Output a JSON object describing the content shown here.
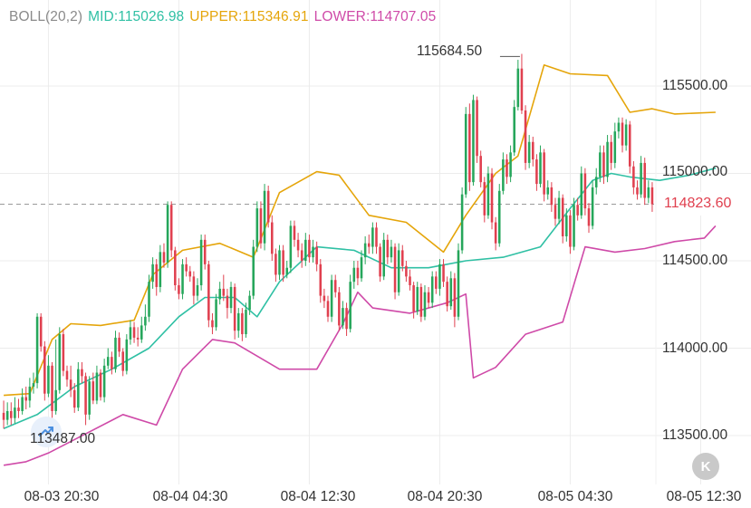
{
  "legend": {
    "boll": "BOLL(20,2)",
    "mid": "MID:115026.98",
    "upper": "UPPER:115346.91",
    "lower": "LOWER:114707.05"
  },
  "y_ticks": [
    "115500.00",
    "115000.00",
    "114500.00",
    "114000.00",
    "113500.00"
  ],
  "x_ticks": [
    "08-03 20:30",
    "08-04 04:30",
    "08-04 12:30",
    "08-04 20:30",
    "08-05 04:30",
    "08-05 12:30"
  ],
  "current_price": "114823.60",
  "high_label": "115684.50",
  "low_label": "113487.00",
  "k_button_label": "K",
  "colors": {
    "up": "#26a65b",
    "down": "#e0404f",
    "mid": "#2fc0a4",
    "upper": "#e5a50a",
    "lower": "#cf4aa8",
    "grid": "#ececec",
    "price_line": "#9a9a9a"
  },
  "chart_data": {
    "type": "candlestick",
    "indicator": "BOLL(20,2)",
    "ylim": [
      113300,
      115770
    ],
    "y_ticks": [
      115500,
      115000,
      114500,
      114000,
      113500
    ],
    "x_ticks": [
      "08-03 20:30",
      "08-04 04:30",
      "08-04 12:30",
      "08-04 20:30",
      "08-05 04:30",
      "08-05 12:30"
    ],
    "x_tick_index": [
      12,
      47,
      82,
      117,
      152,
      187
    ],
    "current_price": 114823.6,
    "high": 115684.5,
    "low": 113487.0,
    "candles": [
      [
        113630,
        113590,
        113700,
        113540
      ],
      [
        113590,
        113640,
        113690,
        113560
      ],
      [
        113640,
        113600,
        113690,
        113560
      ],
      [
        113600,
        113660,
        113720,
        113570
      ],
      [
        113660,
        113640,
        113710,
        113600
      ],
      [
        113640,
        113720,
        113770,
        113620
      ],
      [
        113720,
        113700,
        113780,
        113650
      ],
      [
        113700,
        113780,
        113830,
        113660
      ],
      [
        113780,
        113800,
        113860,
        113740
      ],
      [
        113800,
        114180,
        114200,
        113770
      ],
      [
        114180,
        114010,
        114200,
        113980
      ],
      [
        114010,
        113740,
        114040,
        113700
      ],
      [
        113740,
        113900,
        113960,
        113720
      ],
      [
        113900,
        113640,
        113920,
        113600
      ],
      [
        113640,
        113760,
        114050,
        113620
      ],
      [
        113760,
        114080,
        114120,
        113740
      ],
      [
        114080,
        113870,
        114110,
        113840
      ],
      [
        113870,
        113820,
        113900,
        113780
      ],
      [
        113820,
        113760,
        113900,
        113720
      ],
      [
        113760,
        113660,
        113800,
        113630
      ],
      [
        113660,
        113880,
        113920,
        113640
      ],
      [
        113880,
        113840,
        113920,
        113800
      ],
      [
        113840,
        113620,
        113860,
        113560
      ],
      [
        113620,
        113810,
        113840,
        113590
      ],
      [
        113810,
        113700,
        113860,
        113680
      ],
      [
        113700,
        113860,
        113900,
        113680
      ],
      [
        113860,
        113720,
        113880,
        113700
      ],
      [
        113720,
        113900,
        113940,
        113690
      ],
      [
        113900,
        113950,
        114000,
        113880
      ],
      [
        113950,
        113880,
        113980,
        113850
      ],
      [
        113880,
        114060,
        114100,
        113860
      ],
      [
        114060,
        113980,
        114090,
        113950
      ],
      [
        113980,
        113870,
        114000,
        113840
      ],
      [
        113870,
        114050,
        114080,
        113850
      ],
      [
        114050,
        114120,
        114160,
        114020
      ],
      [
        114120,
        114060,
        114150,
        114030
      ],
      [
        114060,
        114050,
        114120,
        114010
      ],
      [
        114050,
        114130,
        114180,
        114030
      ],
      [
        114130,
        114180,
        114250,
        114100
      ],
      [
        114180,
        114380,
        114420,
        114150
      ],
      [
        114380,
        114480,
        114520,
        114340
      ],
      [
        114480,
        114350,
        114510,
        114300
      ],
      [
        114350,
        114550,
        114590,
        114320
      ],
      [
        114550,
        114490,
        114600,
        114460
      ],
      [
        114490,
        114820,
        114840,
        114460
      ],
      [
        114820,
        114560,
        114840,
        114520
      ],
      [
        114560,
        114360,
        114580,
        114330
      ],
      [
        114360,
        114310,
        114400,
        114280
      ],
      [
        114310,
        114480,
        114510,
        114280
      ],
      [
        114480,
        114440,
        114520,
        114410
      ],
      [
        114440,
        114410,
        114470,
        114380
      ],
      [
        114410,
        114300,
        114440,
        114250
      ],
      [
        114300,
        114360,
        114400,
        114270
      ],
      [
        114360,
        114620,
        114650,
        114330
      ],
      [
        114620,
        114480,
        114650,
        114450
      ],
      [
        114480,
        114160,
        114500,
        114120
      ],
      [
        114160,
        114120,
        114200,
        114080
      ],
      [
        114120,
        114280,
        114310,
        114100
      ],
      [
        114280,
        114340,
        114380,
        114250
      ],
      [
        114340,
        114300,
        114420,
        114270
      ],
      [
        114300,
        114230,
        114340,
        114170
      ],
      [
        114230,
        114350,
        114380,
        114200
      ],
      [
        114350,
        114100,
        114370,
        114050
      ],
      [
        114100,
        114200,
        114230,
        114060
      ],
      [
        114200,
        114080,
        114230,
        114040
      ],
      [
        114080,
        114220,
        114260,
        114060
      ],
      [
        114220,
        114300,
        114330,
        114190
      ],
      [
        114300,
        114580,
        114620,
        114280
      ],
      [
        114580,
        114800,
        114840,
        114550
      ],
      [
        114800,
        114600,
        114840,
        114570
      ],
      [
        114600,
        114900,
        114940,
        114560
      ],
      [
        114900,
        114720,
        114930,
        114690
      ],
      [
        114720,
        114540,
        114760,
        114500
      ],
      [
        114540,
        114420,
        114570,
        114380
      ],
      [
        114420,
        114560,
        114590,
        114390
      ],
      [
        114560,
        114420,
        114590,
        114380
      ],
      [
        114420,
        114460,
        114500,
        114400
      ],
      [
        114460,
        114700,
        114730,
        114430
      ],
      [
        114700,
        114620,
        114730,
        114580
      ],
      [
        114620,
        114560,
        114660,
        114520
      ],
      [
        114560,
        114500,
        114600,
        114460
      ],
      [
        114500,
        114620,
        114660,
        114470
      ],
      [
        114620,
        114520,
        114650,
        114490
      ],
      [
        114520,
        114580,
        114620,
        114490
      ],
      [
        114580,
        114480,
        114610,
        114440
      ],
      [
        114480,
        114300,
        114510,
        114260
      ],
      [
        114300,
        114270,
        114340,
        114230
      ],
      [
        114270,
        114180,
        114300,
        114150
      ],
      [
        114180,
        114390,
        114420,
        114150
      ],
      [
        114390,
        114320,
        114420,
        114290
      ],
      [
        114320,
        114130,
        114350,
        114100
      ],
      [
        114130,
        114230,
        114270,
        114110
      ],
      [
        114230,
        114110,
        114260,
        114070
      ],
      [
        114110,
        114380,
        114420,
        114090
      ],
      [
        114380,
        114460,
        114500,
        114340
      ],
      [
        114460,
        114400,
        114500,
        114360
      ],
      [
        114400,
        114520,
        114560,
        114380
      ],
      [
        114520,
        114600,
        114640,
        114480
      ],
      [
        114600,
        114580,
        114650,
        114540
      ],
      [
        114580,
        114690,
        114720,
        114540
      ],
      [
        114690,
        114580,
        114720,
        114540
      ],
      [
        114580,
        114410,
        114600,
        114380
      ],
      [
        114410,
        114620,
        114660,
        114390
      ],
      [
        114620,
        114520,
        114650,
        114480
      ],
      [
        114520,
        114580,
        114620,
        114490
      ],
      [
        114580,
        114320,
        114600,
        114280
      ],
      [
        114320,
        114560,
        114600,
        114300
      ],
      [
        114560,
        114470,
        114590,
        114440
      ],
      [
        114470,
        114410,
        114500,
        114380
      ],
      [
        114410,
        114360,
        114450,
        114330
      ],
      [
        114360,
        114210,
        114380,
        114170
      ],
      [
        114210,
        114350,
        114380,
        114190
      ],
      [
        114350,
        114180,
        114370,
        114150
      ],
      [
        114180,
        114320,
        114360,
        114160
      ],
      [
        114320,
        114260,
        114350,
        114230
      ],
      [
        114260,
        114410,
        114440,
        114230
      ],
      [
        114410,
        114340,
        114440,
        114310
      ],
      [
        114340,
        114480,
        114510,
        114300
      ],
      [
        114480,
        114380,
        114510,
        114350
      ],
      [
        114380,
        114240,
        114410,
        114210
      ],
      [
        114240,
        114400,
        114440,
        114220
      ],
      [
        114400,
        114180,
        114430,
        114120
      ],
      [
        114180,
        114560,
        114600,
        114160
      ],
      [
        114560,
        114880,
        114920,
        114540
      ],
      [
        114880,
        115340,
        115380,
        114860
      ],
      [
        115340,
        114950,
        115400,
        114900
      ],
      [
        114950,
        115420,
        115450,
        114930
      ],
      [
        115420,
        115100,
        115440,
        115060
      ],
      [
        115100,
        114950,
        115130,
        114920
      ],
      [
        114950,
        114760,
        114980,
        114720
      ],
      [
        114760,
        115000,
        115040,
        114740
      ],
      [
        115000,
        114720,
        115030,
        114680
      ],
      [
        114720,
        114600,
        114750,
        114560
      ],
      [
        114600,
        114900,
        114940,
        114580
      ],
      [
        114900,
        115080,
        115120,
        114880
      ],
      [
        115080,
        114980,
        115110,
        114940
      ],
      [
        114980,
        115120,
        115160,
        114950
      ],
      [
        115120,
        115380,
        115420,
        115100
      ],
      [
        115380,
        115600,
        115650,
        115360
      ],
      [
        115600,
        115360,
        115684,
        115340
      ],
      [
        115360,
        115060,
        115390,
        115020
      ],
      [
        115060,
        115180,
        115220,
        115030
      ],
      [
        115180,
        115080,
        115210,
        115040
      ],
      [
        115080,
        114940,
        115110,
        114900
      ],
      [
        114940,
        115120,
        115160,
        114920
      ],
      [
        115120,
        114880,
        115140,
        114840
      ],
      [
        114880,
        114920,
        114960,
        114850
      ],
      [
        114920,
        114820,
        114950,
        114780
      ],
      [
        114820,
        114740,
        114860,
        114700
      ],
      [
        114740,
        114860,
        114900,
        114710
      ],
      [
        114860,
        114640,
        114880,
        114600
      ],
      [
        114640,
        114760,
        114800,
        114610
      ],
      [
        114760,
        114580,
        114790,
        114540
      ],
      [
        114580,
        114820,
        114860,
        114560
      ],
      [
        114820,
        114760,
        114860,
        114730
      ],
      [
        114760,
        115000,
        115040,
        114740
      ],
      [
        115000,
        114800,
        115030,
        114760
      ],
      [
        114800,
        114700,
        114830,
        114660
      ],
      [
        114700,
        114920,
        114960,
        114680
      ],
      [
        114920,
        114980,
        115030,
        114880
      ],
      [
        114980,
        115120,
        115160,
        114950
      ],
      [
        115120,
        114980,
        115160,
        114940
      ],
      [
        114980,
        115180,
        115220,
        114950
      ],
      [
        115180,
        115060,
        115220,
        115020
      ],
      [
        115060,
        115240,
        115290,
        115030
      ],
      [
        115240,
        115290,
        115320,
        115200
      ],
      [
        115290,
        115160,
        115320,
        115120
      ],
      [
        115160,
        115280,
        115310,
        115130
      ],
      [
        115280,
        115040,
        115300,
        115000
      ],
      [
        115040,
        114920,
        115070,
        114880
      ],
      [
        114920,
        114880,
        114960,
        114850
      ],
      [
        114880,
        115060,
        115100,
        114860
      ],
      [
        115060,
        114860,
        115090,
        114820
      ],
      [
        114860,
        114920,
        114960,
        114830
      ],
      [
        114920,
        114823.6,
        114950,
        114780
      ]
    ],
    "mid_path": [
      [
        0,
        113540
      ],
      [
        9,
        113620
      ],
      [
        19,
        113780
      ],
      [
        29,
        113880
      ],
      [
        39,
        114000
      ],
      [
        47,
        114180
      ],
      [
        54,
        114290
      ],
      [
        62,
        114290
      ],
      [
        68,
        114180
      ],
      [
        74,
        114380
      ],
      [
        84,
        114580
      ],
      [
        94,
        114560
      ],
      [
        104,
        114460
      ],
      [
        114,
        114460
      ],
      [
        124,
        114500
      ],
      [
        134,
        114520
      ],
      [
        144,
        114580
      ],
      [
        152,
        114800
      ],
      [
        158,
        114960
      ],
      [
        163,
        115000
      ],
      [
        168,
        114980
      ],
      [
        176,
        114960
      ],
      [
        184,
        114990
      ],
      [
        191,
        115030
      ]
    ],
    "upper_path": [
      [
        0,
        113730
      ],
      [
        7,
        113740
      ],
      [
        13,
        114050
      ],
      [
        18,
        114140
      ],
      [
        26,
        114130
      ],
      [
        35,
        114160
      ],
      [
        40,
        114420
      ],
      [
        48,
        114560
      ],
      [
        58,
        114600
      ],
      [
        67,
        114520
      ],
      [
        74,
        114890
      ],
      [
        84,
        115010
      ],
      [
        90,
        114990
      ],
      [
        98,
        114760
      ],
      [
        108,
        114720
      ],
      [
        118,
        114550
      ],
      [
        124,
        114760
      ],
      [
        132,
        115000
      ],
      [
        138,
        115100
      ],
      [
        145,
        115620
      ],
      [
        152,
        115570
      ],
      [
        162,
        115560
      ],
      [
        168,
        115350
      ],
      [
        174,
        115370
      ],
      [
        180,
        115340
      ],
      [
        191,
        115350
      ]
    ],
    "lower_path": [
      [
        0,
        113330
      ],
      [
        6,
        113350
      ],
      [
        12,
        113400
      ],
      [
        22,
        113510
      ],
      [
        32,
        113620
      ],
      [
        41,
        113560
      ],
      [
        48,
        113880
      ],
      [
        56,
        114050
      ],
      [
        62,
        114030
      ],
      [
        74,
        113880
      ],
      [
        84,
        113880
      ],
      [
        91,
        114140
      ],
      [
        95,
        114320
      ],
      [
        99,
        114230
      ],
      [
        109,
        114200
      ],
      [
        119,
        114260
      ],
      [
        124,
        114310
      ],
      [
        126,
        113830
      ],
      [
        132,
        113890
      ],
      [
        140,
        114080
      ],
      [
        150,
        114150
      ],
      [
        156,
        114580
      ],
      [
        164,
        114550
      ],
      [
        172,
        114570
      ],
      [
        180,
        114610
      ],
      [
        188,
        114630
      ],
      [
        191,
        114700
      ]
    ]
  }
}
